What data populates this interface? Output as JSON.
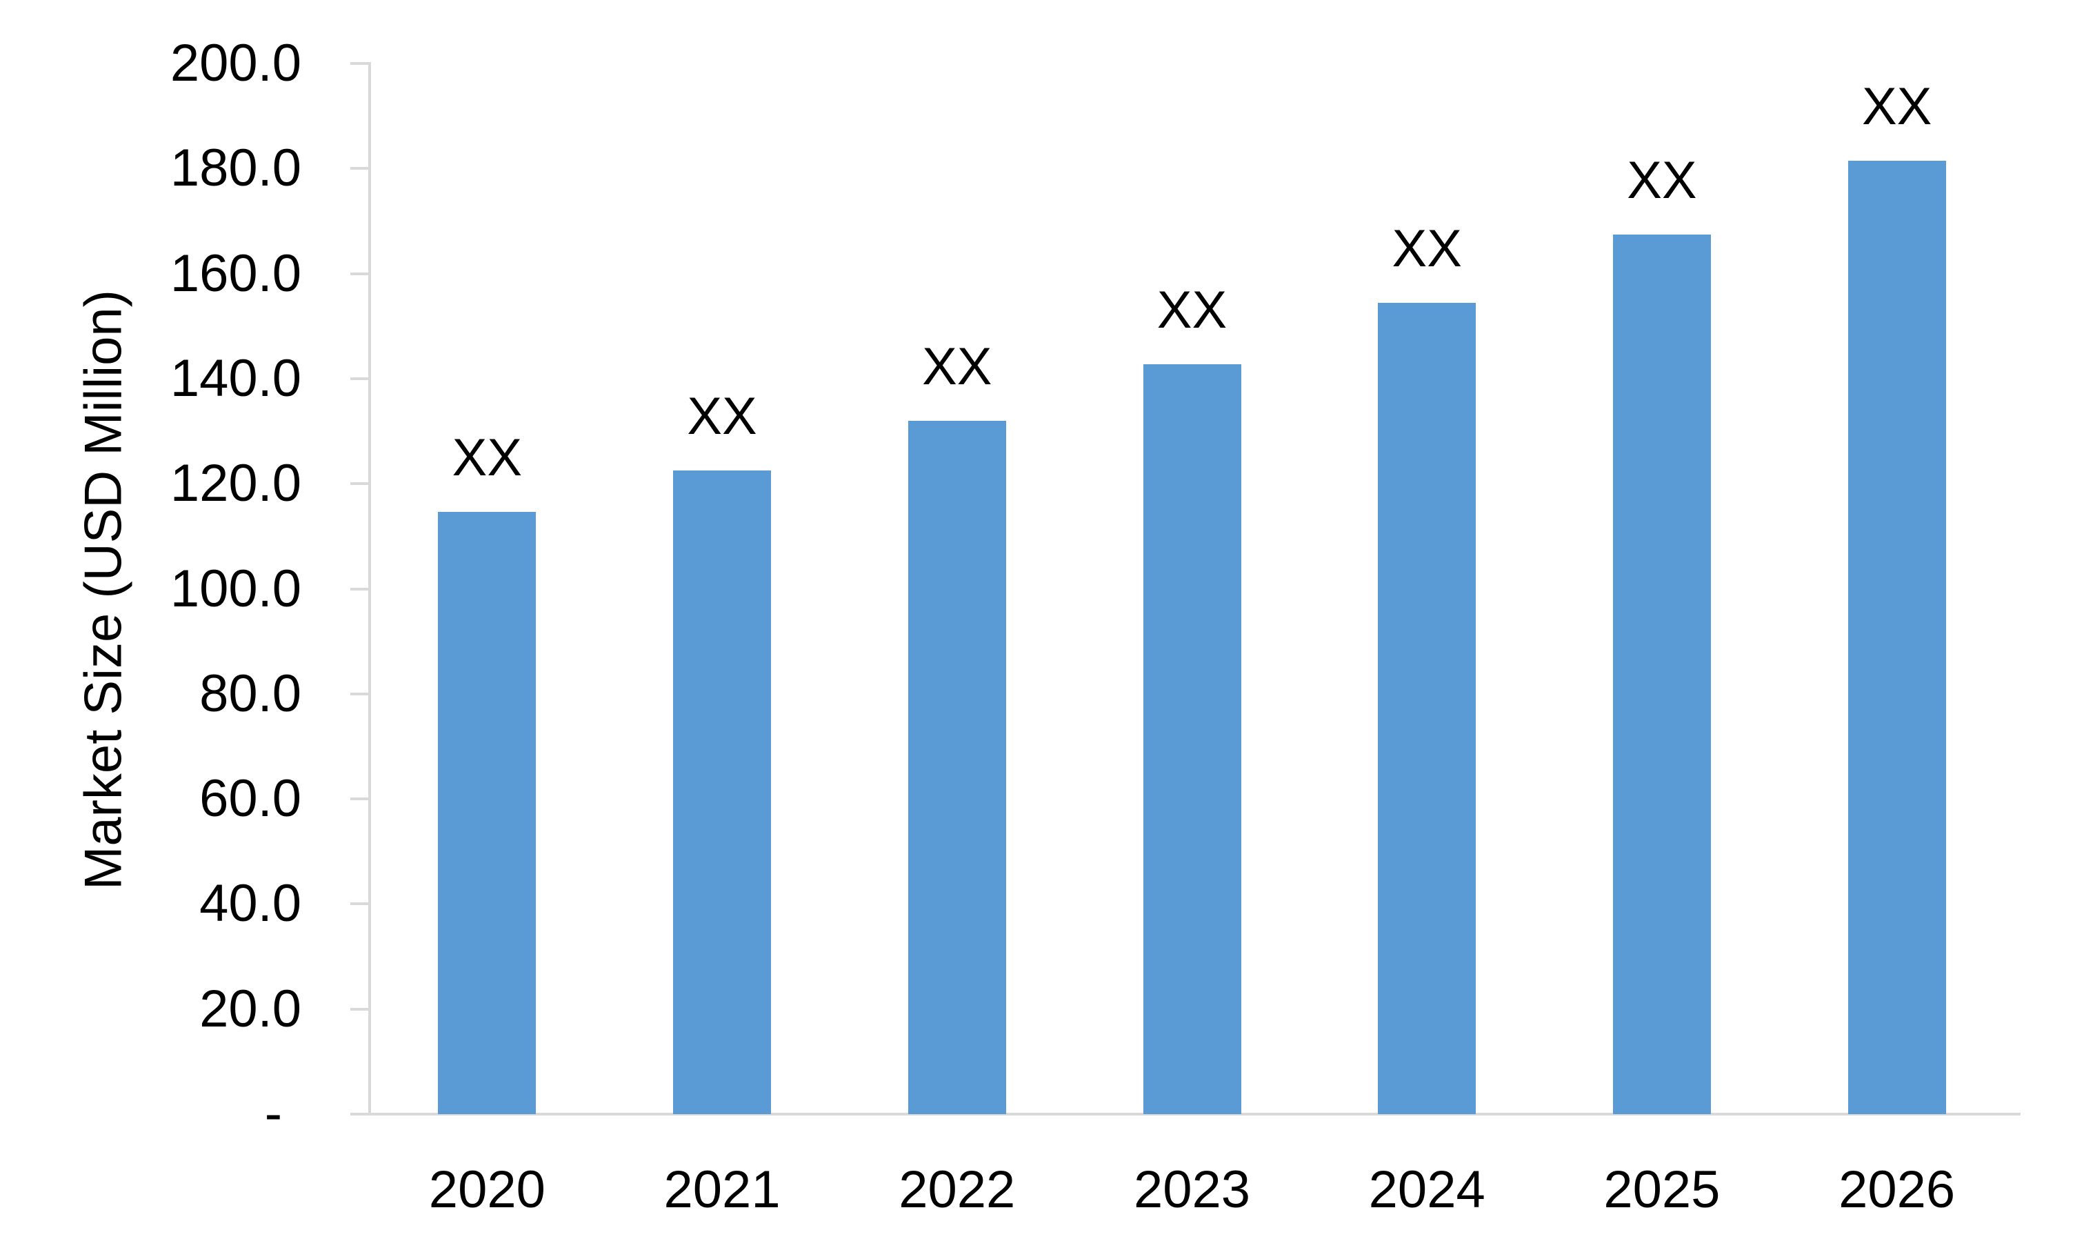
{
  "chart_data": {
    "type": "bar",
    "title": "",
    "categories": [
      "2020",
      "2021",
      "2022",
      "2023",
      "2024",
      "2025",
      "2026"
    ],
    "values": [
      114.6,
      122.5,
      132.0,
      142.7,
      154.4,
      167.4,
      181.5
    ],
    "bar_labels": [
      "XX",
      "XX",
      "XX",
      "XX",
      "XX",
      "XX",
      "XX"
    ],
    "xlabel": "",
    "ylabel": "Market Size (USD Million)",
    "ylim": [
      0,
      200
    ],
    "ytick_interval": 20,
    "ytick_labels": [
      "200.0",
      "180.0",
      "160.0",
      "140.0",
      "120.0",
      "100.0",
      "80.0",
      "60.0",
      "40.0",
      "20.0",
      "-"
    ],
    "grid": "off",
    "legend": "none",
    "bar_color": "#5B9BD5",
    "axis_color": "#D9D9D9",
    "text_color": "#000000",
    "background_color": "#FFFFFF"
  }
}
